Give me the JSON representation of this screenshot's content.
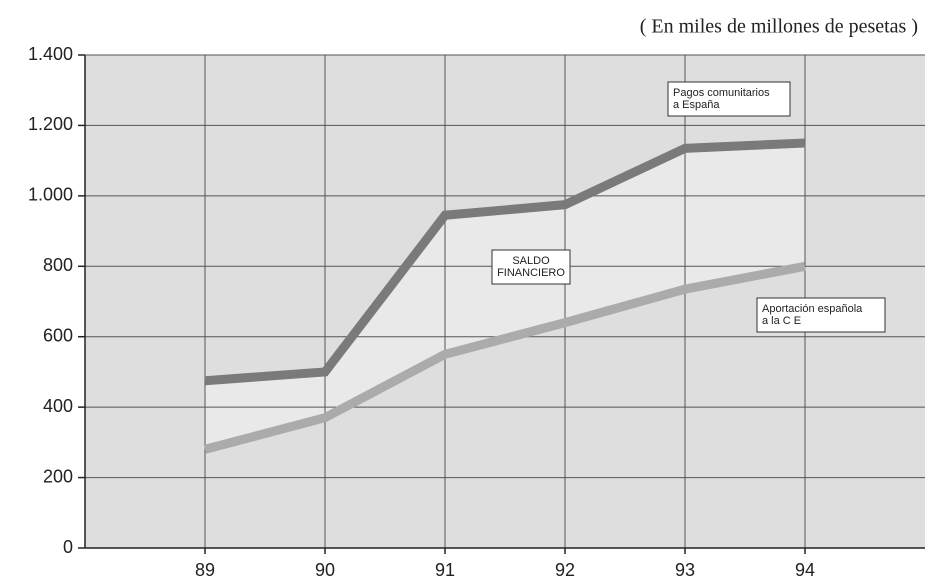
{
  "chart_data": {
    "type": "line",
    "subtitle": "( En miles de millones de pesetas )",
    "x": [
      89,
      90,
      91,
      92,
      93,
      94
    ],
    "xlim": [
      88,
      95
    ],
    "xticks": [
      89,
      90,
      91,
      92,
      93,
      94
    ],
    "ylim": [
      0,
      1400
    ],
    "yticks": [
      0,
      200,
      400,
      600,
      800,
      {
        "value": 1000,
        "label": "1.000"
      },
      {
        "value": 1200,
        "label": "1.200"
      },
      {
        "value": 1400,
        "label": "1.400"
      }
    ],
    "grid": true,
    "series": [
      {
        "name_lines": [
          "Pagos comunitarios",
          "a España"
        ],
        "color": "#7a7a7a",
        "values": [
          475,
          500,
          945,
          975,
          1135,
          1150
        ]
      },
      {
        "name_lines": [
          "Aportación española",
          "a la C E"
        ],
        "color": "#ababab",
        "values": [
          280,
          370,
          550,
          640,
          735,
          800
        ]
      }
    ],
    "fill_between": {
      "color": "#e9e9e9",
      "label_lines": [
        "SALDO",
        "FINANCIERO"
      ]
    }
  }
}
